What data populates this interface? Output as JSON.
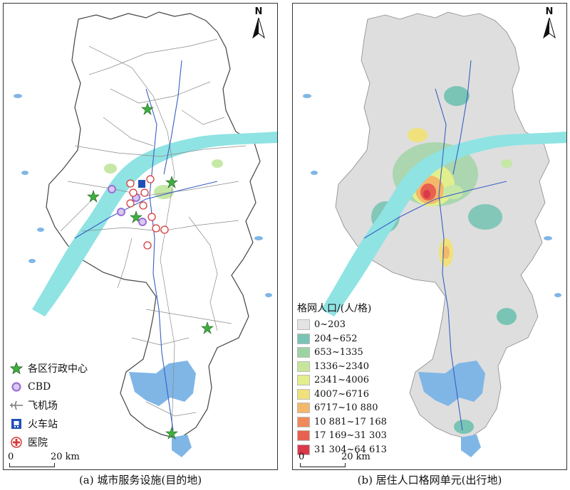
{
  "panel_a": {
    "caption": "(a) 城市服务设施(目的地)",
    "north_label": "N",
    "legend": [
      {
        "icon": "star-icon",
        "label": "各区行政中心",
        "color": "#3fae3f"
      },
      {
        "icon": "cbd-circle-icon",
        "label": "CBD",
        "color": "#9a6fd6"
      },
      {
        "icon": "airplane-icon",
        "label": "飞机场",
        "color": "#7a7a7a"
      },
      {
        "icon": "train-station-icon",
        "label": "火车站",
        "color": "#1f4fb8"
      },
      {
        "icon": "hospital-cross-icon",
        "label": "医院",
        "color": "#d43a3a"
      }
    ],
    "scalebar": {
      "start": "0",
      "end": "20 km"
    }
  },
  "panel_b": {
    "caption": "(b) 居住人口格网单元(出行地)",
    "north_label": "N",
    "legend_title": "格网人口/(人/格)",
    "classes": [
      {
        "label": "0~203",
        "color": "#e4e4e4"
      },
      {
        "label": "204~652",
        "color": "#79c4b4"
      },
      {
        "label": "653~1335",
        "color": "#9dd3a3"
      },
      {
        "label": "1336~2340",
        "color": "#c8e69a"
      },
      {
        "label": "2341~4006",
        "color": "#e2ef8c"
      },
      {
        "label": "4007~6716",
        "color": "#f1e17c"
      },
      {
        "label": "6717~10 880",
        "color": "#f4b86b"
      },
      {
        "label": "10 881~17 168",
        "color": "#f08a5c"
      },
      {
        "label": "17 169~31 303",
        "color": "#e8604f"
      },
      {
        "label": "31 304~64 613",
        "color": "#d93a4a"
      }
    ],
    "scalebar": {
      "start": "0",
      "end": "20 km"
    }
  },
  "colors": {
    "river": "#8fe3e3",
    "lake": "#7fb6e6",
    "road": "#8a8a8a",
    "metro": "#3a5fc4",
    "land": "#dedede",
    "park": "#c6e8a6"
  }
}
